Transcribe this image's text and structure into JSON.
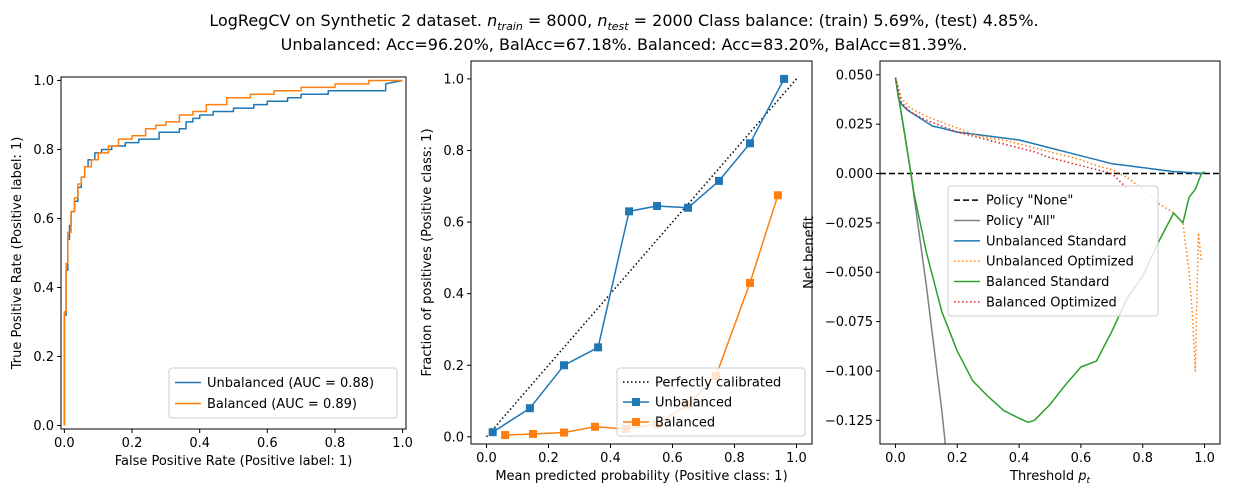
{
  "title": {
    "line1_prefix": "LogRegCV on Synthetic 2 dataset. ",
    "line1_n": "n",
    "line1_train_sub": "train",
    "line1_eq1": " = 8000, ",
    "line1_test_sub": "test",
    "line1_eq2": " = 2000 Class balance: (train) 5.69%, (test) 4.85%.",
    "line2": "Unbalanced: Acc=96.20%, BalAcc=67.18%. Balanced: Acc=83.20%, BalAcc=81.39%."
  },
  "colors": {
    "blue": "#1f77b4",
    "orange": "#ff7f0e",
    "green": "#2ca02c",
    "red": "#d62728",
    "gray": "#808080",
    "black": "#000000"
  },
  "chart_data": [
    {
      "type": "line",
      "name": "roc",
      "xlabel": "False Positive Rate (Positive label: 1)",
      "ylabel": "True Positive Rate (Positive label: 1)",
      "xlim": [
        -0.01,
        1.01
      ],
      "ylim": [
        -0.01,
        1.01
      ],
      "xticks": [
        0.0,
        0.2,
        0.4,
        0.6,
        0.8,
        1.0
      ],
      "yticks": [
        0.0,
        0.2,
        0.4,
        0.6,
        0.8,
        1.0
      ],
      "tick_decimals": 1,
      "grid": false,
      "legend": "lower right",
      "step": true,
      "series": [
        {
          "name": "Unbalanced (AUC = 0.88)",
          "color": "#1f77b4",
          "style": "solid",
          "marker": "none",
          "x": [
            0,
            0,
            0.005,
            0.005,
            0.01,
            0.01,
            0.015,
            0.015,
            0.02,
            0.02,
            0.03,
            0.03,
            0.04,
            0.04,
            0.05,
            0.05,
            0.06,
            0.06,
            0.07,
            0.07,
            0.09,
            0.09,
            0.11,
            0.11,
            0.14,
            0.14,
            0.18,
            0.18,
            0.22,
            0.22,
            0.28,
            0.28,
            0.34,
            0.34,
            0.36,
            0.36,
            0.38,
            0.38,
            0.4,
            0.4,
            0.44,
            0.44,
            0.5,
            0.5,
            0.56,
            0.56,
            0.6,
            0.6,
            0.66,
            0.66,
            0.7,
            0.7,
            0.78,
            0.78,
            0.95,
            0.95,
            1.0
          ],
          "y": [
            0,
            0.32,
            0.32,
            0.45,
            0.45,
            0.54,
            0.54,
            0.58,
            0.58,
            0.62,
            0.62,
            0.65,
            0.65,
            0.69,
            0.69,
            0.72,
            0.72,
            0.75,
            0.75,
            0.77,
            0.77,
            0.79,
            0.79,
            0.8,
            0.8,
            0.81,
            0.81,
            0.82,
            0.82,
            0.83,
            0.83,
            0.85,
            0.85,
            0.86,
            0.86,
            0.88,
            0.88,
            0.89,
            0.89,
            0.9,
            0.9,
            0.91,
            0.91,
            0.92,
            0.92,
            0.93,
            0.93,
            0.94,
            0.94,
            0.95,
            0.95,
            0.96,
            0.96,
            0.97,
            0.97,
            0.99,
            1.0
          ]
        },
        {
          "name": "Balanced (AUC = 0.89)",
          "color": "#ff7f0e",
          "style": "solid",
          "marker": "none",
          "x": [
            0,
            0,
            0.005,
            0.005,
            0.01,
            0.01,
            0.02,
            0.02,
            0.03,
            0.03,
            0.04,
            0.04,
            0.05,
            0.05,
            0.06,
            0.06,
            0.08,
            0.08,
            0.1,
            0.1,
            0.13,
            0.13,
            0.16,
            0.16,
            0.2,
            0.2,
            0.24,
            0.24,
            0.27,
            0.27,
            0.3,
            0.3,
            0.34,
            0.34,
            0.38,
            0.38,
            0.42,
            0.42,
            0.48,
            0.48,
            0.55,
            0.55,
            0.62,
            0.62,
            0.7,
            0.7,
            0.8,
            0.8,
            0.9,
            0.9,
            1.0
          ],
          "y": [
            0,
            0.33,
            0.33,
            0.47,
            0.47,
            0.56,
            0.56,
            0.62,
            0.62,
            0.66,
            0.66,
            0.7,
            0.7,
            0.72,
            0.72,
            0.75,
            0.75,
            0.77,
            0.77,
            0.79,
            0.79,
            0.81,
            0.81,
            0.83,
            0.83,
            0.84,
            0.84,
            0.86,
            0.86,
            0.87,
            0.87,
            0.88,
            0.88,
            0.9,
            0.9,
            0.91,
            0.91,
            0.93,
            0.93,
            0.95,
            0.95,
            0.96,
            0.96,
            0.97,
            0.97,
            0.98,
            0.98,
            0.99,
            0.99,
            1.0,
            1.0
          ]
        }
      ]
    },
    {
      "type": "line",
      "name": "calibration",
      "xlabel": "Mean predicted probability (Positive class: 1)",
      "ylabel": "Fraction of positives (Positive class: 1)",
      "xlim": [
        -0.05,
        1.05
      ],
      "ylim": [
        -0.02,
        1.05
      ],
      "xticks": [
        0.0,
        0.2,
        0.4,
        0.6,
        0.8,
        1.0
      ],
      "yticks": [
        0.0,
        0.2,
        0.4,
        0.6,
        0.8,
        1.0
      ],
      "tick_decimals": 1,
      "grid": false,
      "legend": "lower right",
      "series": [
        {
          "name": "Perfectly calibrated",
          "color": "#000000",
          "style": "dotted",
          "marker": "none",
          "x": [
            0,
            1
          ],
          "y": [
            0,
            1
          ]
        },
        {
          "name": "Unbalanced",
          "color": "#1f77b4",
          "style": "solid",
          "marker": "square",
          "x": [
            0.02,
            0.14,
            0.25,
            0.36,
            0.46,
            0.55,
            0.65,
            0.75,
            0.85,
            0.96
          ],
          "y": [
            0.013,
            0.08,
            0.2,
            0.25,
            0.63,
            0.645,
            0.64,
            0.715,
            0.82,
            1.0
          ]
        },
        {
          "name": "Balanced",
          "color": "#ff7f0e",
          "style": "solid",
          "marker": "square",
          "x": [
            0.06,
            0.15,
            0.25,
            0.35,
            0.45,
            0.55,
            0.65,
            0.74,
            0.85,
            0.94
          ],
          "y": [
            0.005,
            0.008,
            0.012,
            0.028,
            0.022,
            0.035,
            0.09,
            0.17,
            0.43,
            0.675
          ]
        }
      ]
    },
    {
      "type": "line",
      "name": "net-benefit",
      "xlabel_main": "Threshold ",
      "xlabel_symbol": "p",
      "xlabel_sub": "t",
      "ylabel": "Net benefit",
      "xlim": [
        -0.05,
        1.05
      ],
      "ylim": [
        -0.137,
        0.057
      ],
      "xticks": [
        0.0,
        0.2,
        0.4,
        0.6,
        0.8,
        1.0
      ],
      "yticks": [
        0.05,
        0.025,
        0.0,
        -0.025,
        -0.05,
        -0.075,
        -0.1,
        -0.125
      ],
      "tick_decimals": 3,
      "grid": false,
      "legend": "center",
      "series": [
        {
          "name": "Policy \"None\"",
          "color": "#000000",
          "style": "dashed",
          "marker": "none",
          "x": [
            -0.05,
            1.05
          ],
          "y": [
            0,
            0
          ]
        },
        {
          "name": "Policy \"All\"",
          "color": "#808080",
          "style": "solid",
          "marker": "none",
          "x": [
            0,
            0.05,
            0.1,
            0.15,
            0.17
          ],
          "y": [
            0.0485,
            0.0,
            -0.057,
            -0.12,
            -0.15
          ]
        },
        {
          "name": "Unbalanced Standard",
          "color": "#1f77b4",
          "style": "solid",
          "marker": "none",
          "x": [
            0,
            0.01,
            0.02,
            0.04,
            0.06,
            0.08,
            0.1,
            0.12,
            0.15,
            0.2,
            0.25,
            0.3,
            0.35,
            0.4,
            0.45,
            0.5,
            0.55,
            0.6,
            0.65,
            0.7,
            0.75,
            0.8,
            0.85,
            0.9,
            0.95,
            1.0
          ],
          "y": [
            0.0485,
            0.038,
            0.035,
            0.032,
            0.03,
            0.028,
            0.026,
            0.024,
            0.023,
            0.021,
            0.02,
            0.019,
            0.018,
            0.017,
            0.015,
            0.013,
            0.011,
            0.009,
            0.007,
            0.005,
            0.004,
            0.003,
            0.002,
            0.001,
            0.0005,
            0.0
          ]
        },
        {
          "name": "Unbalanced Optimized",
          "color": "#ff7f0e",
          "style": "dotted",
          "marker": "none",
          "x": [
            0,
            0.02,
            0.05,
            0.1,
            0.15,
            0.2,
            0.25,
            0.3,
            0.35,
            0.4,
            0.45,
            0.5,
            0.55,
            0.6,
            0.65,
            0.7,
            0.75,
            0.8,
            0.85,
            0.9,
            0.93,
            0.95,
            0.96,
            0.97,
            0.98,
            0.99
          ],
          "y": [
            0.0485,
            0.038,
            0.033,
            0.029,
            0.026,
            0.023,
            0.02,
            0.018,
            0.017,
            0.015,
            0.013,
            0.011,
            0.009,
            0.007,
            0.004,
            0.002,
            -0.002,
            -0.008,
            -0.015,
            -0.02,
            -0.025,
            -0.05,
            -0.07,
            -0.1,
            -0.03,
            -0.045
          ]
        },
        {
          "name": "Balanced Standard",
          "color": "#2ca02c",
          "style": "solid",
          "marker": "none",
          "x": [
            0,
            0.03,
            0.06,
            0.1,
            0.15,
            0.2,
            0.25,
            0.3,
            0.35,
            0.4,
            0.43,
            0.45,
            0.5,
            0.55,
            0.6,
            0.65,
            0.7,
            0.75,
            0.8,
            0.85,
            0.9,
            0.93,
            0.95,
            0.97,
            0.99,
            1.0
          ],
          "y": [
            0.0485,
            0.02,
            -0.01,
            -0.04,
            -0.07,
            -0.09,
            -0.105,
            -0.113,
            -0.12,
            -0.124,
            -0.126,
            -0.125,
            -0.117,
            -0.107,
            -0.098,
            -0.095,
            -0.08,
            -0.063,
            -0.052,
            -0.035,
            -0.02,
            -0.025,
            -0.012,
            -0.008,
            0.0,
            0.001
          ]
        },
        {
          "name": "Balanced Optimized",
          "color": "#d62728",
          "style": "dotted",
          "marker": "none",
          "x": [
            0,
            0.02,
            0.05,
            0.1,
            0.15,
            0.2,
            0.25,
            0.3,
            0.35,
            0.4,
            0.45,
            0.5,
            0.55,
            0.6,
            0.65,
            0.7,
            0.72,
            0.74,
            0.75
          ],
          "y": [
            0.0485,
            0.036,
            0.031,
            0.027,
            0.024,
            0.021,
            0.019,
            0.017,
            0.015,
            0.013,
            0.011,
            0.008,
            0.006,
            0.004,
            0.002,
            0.0,
            -0.003,
            -0.006,
            -0.008
          ]
        }
      ]
    }
  ]
}
